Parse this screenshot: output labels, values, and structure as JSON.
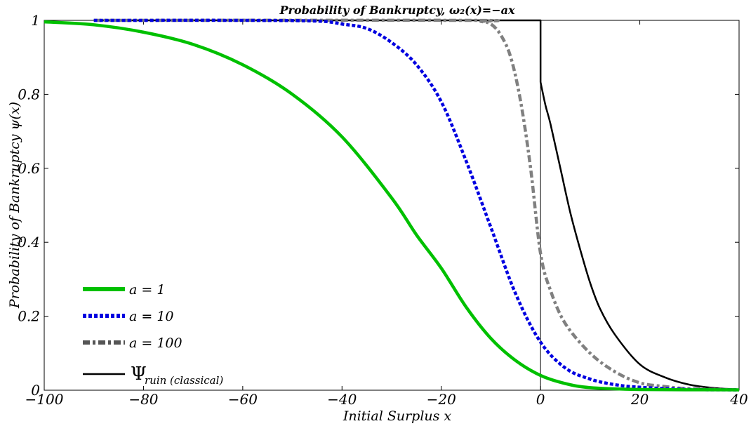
{
  "chart_data": {
    "type": "line",
    "title": "Probability of Bankruptcy, ω₂(x)=−ax",
    "xlabel": "Initial Surplus x",
    "ylabel": "Probability of Bankruptcy ψ(x)",
    "xlim": [
      -100,
      40
    ],
    "ylim": [
      0,
      1
    ],
    "x_ticks": [
      -100,
      -80,
      -60,
      -40,
      -20,
      0,
      20,
      40
    ],
    "x_tick_labels": [
      "−100",
      "−80",
      "−60",
      "−40",
      "−20",
      "0",
      "20",
      "40"
    ],
    "y_ticks": [
      0,
      0.2,
      0.4,
      0.6,
      0.8,
      1
    ],
    "y_tick_labels": [
      "0",
      "0.2",
      "0.4",
      "0.6",
      "0.8",
      "1"
    ],
    "grid": false,
    "legend_position": "lower-left",
    "series": [
      {
        "name": "a = 1",
        "color": "#00c000",
        "style": "solid-thick",
        "points": [
          [
            -100,
            0.996
          ],
          [
            -90,
            0.988
          ],
          [
            -80,
            0.968
          ],
          [
            -70,
            0.935
          ],
          [
            -60,
            0.88
          ],
          [
            -50,
            0.8
          ],
          [
            -40,
            0.685
          ],
          [
            -30,
            0.52
          ],
          [
            -25,
            0.42
          ],
          [
            -20,
            0.33
          ],
          [
            -15,
            0.225
          ],
          [
            -10,
            0.14
          ],
          [
            -5,
            0.08
          ],
          [
            0,
            0.04
          ],
          [
            5,
            0.018
          ],
          [
            10,
            0.007
          ],
          [
            20,
            0.002
          ],
          [
            40,
            0.001
          ]
        ]
      },
      {
        "name": "a = 10",
        "color": "#0000e0",
        "style": "dotted",
        "points": [
          [
            -90,
            1.0
          ],
          [
            -60,
            1.0
          ],
          [
            -45,
            0.998
          ],
          [
            -40,
            0.99
          ],
          [
            -35,
            0.978
          ],
          [
            -30,
            0.94
          ],
          [
            -25,
            0.88
          ],
          [
            -20,
            0.78
          ],
          [
            -15,
            0.62
          ],
          [
            -10,
            0.44
          ],
          [
            -5,
            0.26
          ],
          [
            0,
            0.13
          ],
          [
            5,
            0.06
          ],
          [
            10,
            0.03
          ],
          [
            15,
            0.015
          ],
          [
            20,
            0.008
          ],
          [
            30,
            0.002
          ],
          [
            40,
            0.001
          ]
        ]
      },
      {
        "name": "a = 100",
        "color": "#808080",
        "style": "dash-dot",
        "points": [
          [
            -90,
            1.0
          ],
          [
            -15,
            1.0
          ],
          [
            -12,
            0.997
          ],
          [
            -10,
            0.99
          ],
          [
            -8,
            0.96
          ],
          [
            -6,
            0.9
          ],
          [
            -4,
            0.78
          ],
          [
            -2,
            0.6
          ],
          [
            0,
            0.37
          ],
          [
            2,
            0.27
          ],
          [
            5,
            0.18
          ],
          [
            10,
            0.1
          ],
          [
            15,
            0.05
          ],
          [
            20,
            0.02
          ],
          [
            25,
            0.01
          ],
          [
            30,
            0.004
          ],
          [
            40,
            0.001
          ]
        ]
      },
      {
        "name": "Ψ",
        "name_subscript": "ruin (classical)",
        "color": "#000000",
        "style": "solid-thin",
        "points": [
          [
            -90,
            1.0
          ],
          [
            0,
            1.0
          ],
          [
            0.001,
            0.833
          ],
          [
            1,
            0.77
          ],
          [
            2,
            0.72
          ],
          [
            4,
            0.6
          ],
          [
            6,
            0.48
          ],
          [
            8,
            0.38
          ],
          [
            10,
            0.29
          ],
          [
            12,
            0.22
          ],
          [
            15,
            0.15
          ],
          [
            20,
            0.07
          ],
          [
            25,
            0.035
          ],
          [
            30,
            0.015
          ],
          [
            35,
            0.006
          ],
          [
            40,
            0.002
          ]
        ]
      }
    ]
  }
}
